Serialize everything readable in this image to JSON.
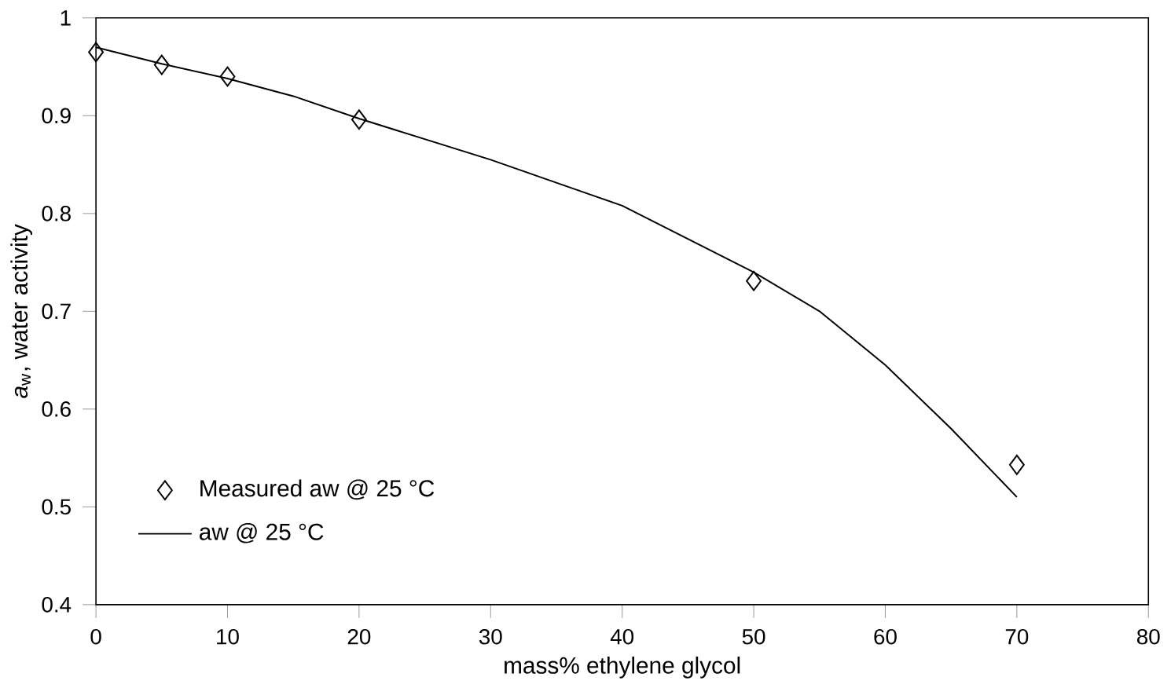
{
  "chart_data": {
    "type": "scatter",
    "xlabel": "mass% ethylene glycol",
    "ylabel": "*a*$_{w}$, water activity",
    "xlim": [
      0,
      80
    ],
    "xticks": [
      0,
      10,
      20,
      30,
      40,
      50,
      60,
      70,
      80
    ],
    "ylim": [
      0.4,
      1
    ],
    "yticks": [
      0.4,
      0.5,
      0.6,
      0.7,
      0.8,
      0.9,
      1
    ],
    "grid": false,
    "legend": "bottom left",
    "series": [
      {
        "name": "Measured aw @ 25 °C",
        "marker": "diamond",
        "color": "#000000",
        "x": [
          0,
          5,
          10,
          20,
          50,
          70
        ],
        "values": [
          0.965,
          0.952,
          0.94,
          0.896,
          0.731,
          0.543
        ]
      },
      {
        "name": "aw @ 25 °C",
        "type": "line",
        "marker": "none",
        "line_style": "solid",
        "color": "#000000",
        "x": [
          0,
          5,
          10,
          15,
          20,
          30,
          40,
          50,
          55,
          60,
          65,
          70
        ],
        "values": [
          0.97,
          0.953,
          0.938,
          0.92,
          0.897,
          0.855,
          0.808,
          0.74,
          0.7,
          0.645,
          0.58,
          0.51
        ]
      }
    ]
  }
}
